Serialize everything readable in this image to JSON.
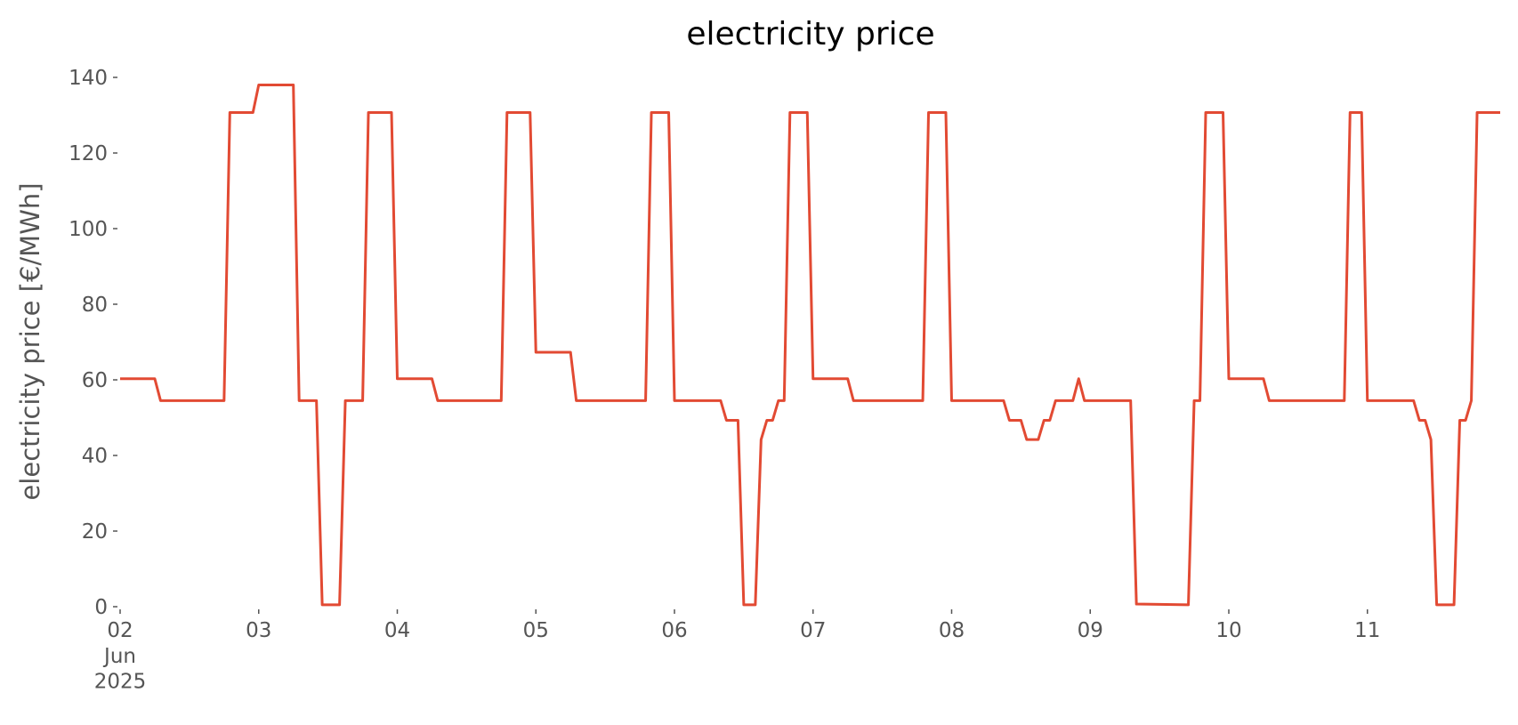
{
  "chart_data": {
    "type": "line",
    "title": "electricity price",
    "ylabel": "electricity price [€/MWh]",
    "x": [
      "2025-06-02T00:00",
      "2025-06-02T06:00",
      "2025-06-02T07:00",
      "2025-06-02T18:00",
      "2025-06-02T19:00",
      "2025-06-02T23:00",
      "2025-06-03T00:00",
      "2025-06-03T06:00",
      "2025-06-03T07:00",
      "2025-06-03T10:00",
      "2025-06-03T11:00",
      "2025-06-03T14:00",
      "2025-06-03T15:00",
      "2025-06-03T18:00",
      "2025-06-03T19:00",
      "2025-06-03T23:00",
      "2025-06-04T00:00",
      "2025-06-04T06:00",
      "2025-06-04T07:00",
      "2025-06-04T18:00",
      "2025-06-04T19:00",
      "2025-06-04T23:00",
      "2025-06-05T00:00",
      "2025-06-05T06:00",
      "2025-06-05T07:00",
      "2025-06-05T19:00",
      "2025-06-05T20:00",
      "2025-06-05T23:00",
      "2025-06-06T00:00",
      "2025-06-06T08:00",
      "2025-06-06T09:00",
      "2025-06-06T11:00",
      "2025-06-06T12:00",
      "2025-06-06T14:00",
      "2025-06-06T15:00",
      "2025-06-06T16:00",
      "2025-06-06T17:00",
      "2025-06-06T18:00",
      "2025-06-06T19:00",
      "2025-06-06T20:00",
      "2025-06-06T23:00",
      "2025-06-07T00:00",
      "2025-06-07T06:00",
      "2025-06-07T07:00",
      "2025-06-07T19:00",
      "2025-06-07T20:00",
      "2025-06-07T23:00",
      "2025-06-08T00:00",
      "2025-06-08T09:00",
      "2025-06-08T10:00",
      "2025-06-08T12:00",
      "2025-06-08T13:00",
      "2025-06-08T15:00",
      "2025-06-08T16:00",
      "2025-06-08T17:00",
      "2025-06-08T18:00",
      "2025-06-08T21:00",
      "2025-06-08T22:00",
      "2025-06-08T23:00",
      "2025-06-09T07:00",
      "2025-06-09T08:00",
      "2025-06-09T17:00",
      "2025-06-09T18:00",
      "2025-06-09T19:00",
      "2025-06-09T20:00",
      "2025-06-09T23:00",
      "2025-06-10T00:00",
      "2025-06-10T06:00",
      "2025-06-10T07:00",
      "2025-06-10T20:00",
      "2025-06-10T21:00",
      "2025-06-10T23:00",
      "2025-06-11T00:00",
      "2025-06-11T08:00",
      "2025-06-11T09:00",
      "2025-06-11T10:00",
      "2025-06-11T11:00",
      "2025-06-11T12:00",
      "2025-06-11T15:00",
      "2025-06-11T16:00",
      "2025-06-11T17:00",
      "2025-06-11T18:00",
      "2025-06-11T19:00",
      "2025-06-11T23:00"
    ],
    "series": [
      {
        "color": "#e24a33",
        "values": [
          60.3,
          60.3,
          54.5,
          54.5,
          130.7,
          130.7,
          138,
          138,
          54.5,
          54.5,
          0.5,
          0.5,
          54.5,
          54.5,
          130.7,
          130.7,
          60.3,
          60.3,
          54.5,
          54.5,
          130.7,
          130.7,
          67.3,
          67.3,
          54.5,
          54.5,
          130.7,
          130.7,
          54.5,
          54.5,
          49.3,
          49.3,
          0.5,
          0.5,
          44.2,
          49.3,
          49.3,
          54.5,
          54.5,
          130.7,
          130.7,
          60.3,
          60.3,
          54.5,
          54.5,
          130.7,
          130.7,
          54.5,
          54.5,
          49.3,
          49.3,
          44.2,
          44.2,
          49.3,
          49.3,
          54.5,
          54.5,
          60.3,
          54.5,
          54.5,
          0.7,
          0.5,
          54.5,
          54.5,
          130.7,
          130.7,
          60.3,
          60.3,
          54.5,
          54.5,
          130.7,
          130.7,
          54.5,
          54.5,
          49.3,
          49.3,
          44.2,
          0.5,
          0.5,
          49.3,
          49.3,
          54.5,
          130.7,
          130.7
        ]
      }
    ],
    "xlim": [
      "2025-06-02T00:00",
      "2025-06-11T23:00"
    ],
    "xticks": [
      {
        "value": "2025-06-02T00:00",
        "label": "02\nJun\n2025"
      },
      {
        "value": "2025-06-03T00:00",
        "label": "03"
      },
      {
        "value": "2025-06-04T00:00",
        "label": "04"
      },
      {
        "value": "2025-06-05T00:00",
        "label": "05"
      },
      {
        "value": "2025-06-06T00:00",
        "label": "06"
      },
      {
        "value": "2025-06-07T00:00",
        "label": "07"
      },
      {
        "value": "2025-06-08T00:00",
        "label": "08"
      },
      {
        "value": "2025-06-09T00:00",
        "label": "09"
      },
      {
        "value": "2025-06-10T00:00",
        "label": "10"
      },
      {
        "value": "2025-06-11T00:00",
        "label": "11"
      }
    ],
    "ylim": [
      0,
      140
    ],
    "yticks": [
      0,
      20,
      40,
      60,
      80,
      100,
      120,
      140
    ],
    "grid": false
  }
}
